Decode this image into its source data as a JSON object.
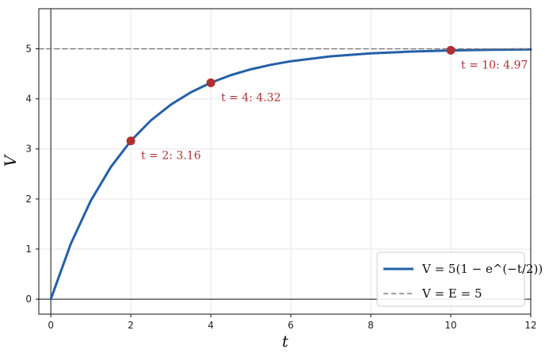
{
  "chart_data": {
    "type": "line",
    "title": "",
    "xlabel": "t",
    "ylabel": "V",
    "xlim": [
      -0.3,
      12
    ],
    "ylim": [
      -0.3,
      5.8
    ],
    "xticks": [
      0,
      2,
      4,
      6,
      8,
      10,
      12
    ],
    "yticks": [
      0,
      1,
      2,
      3,
      4,
      5
    ],
    "grid": true,
    "legend_position": "bottom-right",
    "series": [
      {
        "name": "V = 5(1 − e^(−t/2))",
        "style": "solid",
        "color": "#2460a7",
        "x": [
          0,
          0.5,
          1,
          1.5,
          2,
          2.5,
          3,
          3.5,
          4,
          4.5,
          5,
          5.5,
          6,
          7,
          8,
          9,
          10,
          11,
          12
        ],
        "y": [
          0,
          1.106,
          1.967,
          2.638,
          3.161,
          3.568,
          3.884,
          4.131,
          4.323,
          4.473,
          4.59,
          4.68,
          4.751,
          4.849,
          4.908,
          4.944,
          4.966,
          4.98,
          4.988
        ]
      },
      {
        "name": "V = E = 5",
        "style": "dashed",
        "color": "#808080",
        "x": [
          -0.3,
          12
        ],
        "y": [
          5,
          5
        ]
      }
    ],
    "points": [
      {
        "x": 2,
        "y": 3.16,
        "label": "t = 2: 3.16"
      },
      {
        "x": 4,
        "y": 4.32,
        "label": "t = 4: 4.32"
      },
      {
        "x": 10,
        "y": 4.97,
        "label": "t = 10: 4.97"
      }
    ],
    "colors": {
      "curve": "#2460a7",
      "asymptote": "#808080",
      "point": "#b03030",
      "grid": "#e6e6e6"
    }
  }
}
